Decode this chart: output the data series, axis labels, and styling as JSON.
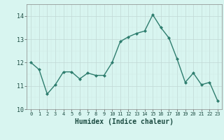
{
  "x": [
    0,
    1,
    2,
    3,
    4,
    5,
    6,
    7,
    8,
    9,
    10,
    11,
    12,
    13,
    14,
    15,
    16,
    17,
    18,
    19,
    20,
    21,
    22,
    23
  ],
  "y": [
    12.0,
    11.7,
    10.65,
    11.05,
    11.6,
    11.6,
    11.3,
    11.55,
    11.45,
    11.45,
    12.0,
    12.9,
    13.1,
    13.25,
    13.35,
    14.05,
    13.5,
    13.05,
    12.15,
    11.15,
    11.55,
    11.05,
    11.15,
    10.35
  ],
  "line_color": "#2e7d6e",
  "marker": "D",
  "marker_size": 2.0,
  "bg_color": "#d8f5f0",
  "grid_color_major": "#c0d8d4",
  "grid_color_minor": "#d0eae6",
  "xlabel": "Humidex (Indice chaleur)",
  "xlabel_fontsize": 7,
  "xlim": [
    -0.5,
    23.5
  ],
  "ylim": [
    10,
    14.5
  ],
  "yticks": [
    10,
    11,
    12,
    13,
    14
  ],
  "xticks": [
    0,
    1,
    2,
    3,
    4,
    5,
    6,
    7,
    8,
    9,
    10,
    11,
    12,
    13,
    14,
    15,
    16,
    17,
    18,
    19,
    20,
    21,
    22,
    23
  ],
  "tick_fontsize": 5.5,
  "linewidth": 1.0,
  "tick_color": "#2e6b60",
  "label_color": "#1a4a40"
}
